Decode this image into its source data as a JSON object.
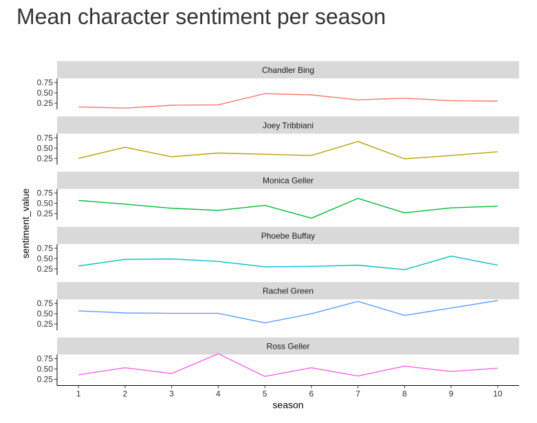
{
  "title": "Mean character sentiment per season",
  "chart_data": {
    "type": "line",
    "title": "Mean character sentiment per season",
    "xlabel": "season",
    "ylabel": "sentiment_value",
    "x": [
      1,
      2,
      3,
      4,
      5,
      6,
      7,
      8,
      9,
      10
    ],
    "x_ticks": [
      "1",
      "2",
      "3",
      "4",
      "5",
      "6",
      "7",
      "8",
      "9",
      "10"
    ],
    "y_ticks": [
      "0.25",
      "0.50",
      "0.75"
    ],
    "ylim": [
      0.1,
      0.85
    ],
    "grid": false,
    "legend": "none",
    "series": [
      {
        "name": "Chandler Bing",
        "color": "#F8766D",
        "values": [
          0.16,
          0.13,
          0.2,
          0.21,
          0.48,
          0.45,
          0.33,
          0.37,
          0.31,
          0.3
        ]
      },
      {
        "name": "Joey Tribbiani",
        "color": "#B79F00",
        "values": [
          0.25,
          0.52,
          0.29,
          0.38,
          0.35,
          0.32,
          0.66,
          0.24,
          0.32,
          0.41
        ]
      },
      {
        "name": "Monica Geller",
        "color": "#00BA38",
        "values": [
          0.57,
          0.48,
          0.38,
          0.33,
          0.45,
          0.14,
          0.62,
          0.27,
          0.39,
          0.43
        ]
      },
      {
        "name": "Phoebe Buffay",
        "color": "#00BFC4",
        "values": [
          0.32,
          0.48,
          0.49,
          0.43,
          0.3,
          0.31,
          0.34,
          0.23,
          0.56,
          0.34
        ]
      },
      {
        "name": "Rachel Green",
        "color": "#619CFF",
        "values": [
          0.57,
          0.52,
          0.51,
          0.51,
          0.28,
          0.5,
          0.8,
          0.46,
          0.64,
          0.82
        ]
      },
      {
        "name": "Ross Geller",
        "color": "#F564E3",
        "values": [
          0.36,
          0.53,
          0.39,
          0.87,
          0.32,
          0.53,
          0.33,
          0.57,
          0.44,
          0.52
        ]
      }
    ]
  }
}
